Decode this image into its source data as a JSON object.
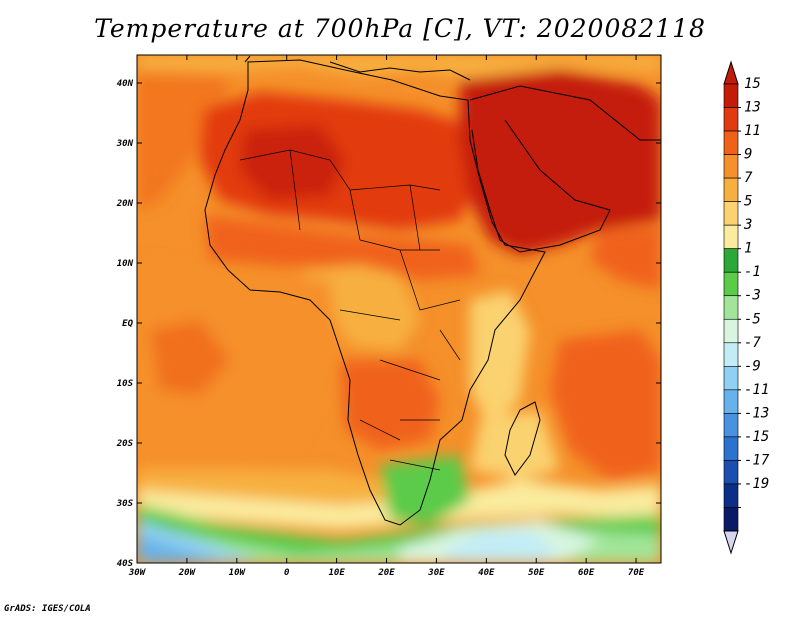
{
  "map": {
    "title": "Temperature at 700hPa [C], VT: 2020082118",
    "credit": "GrADS: IGES/COLA",
    "lon_ticks": [
      "30W",
      "20W",
      "10W",
      "0",
      "10E",
      "20E",
      "30E",
      "40E",
      "50E",
      "60E",
      "70E"
    ],
    "lat_ticks": [
      "40N",
      "30N",
      "20N",
      "10N",
      "EQ",
      "10S",
      "20S",
      "30S",
      "40S"
    ]
  },
  "colorbar": {
    "labels": [
      "15",
      "13",
      "11",
      "9",
      "7",
      "5",
      "3",
      "1",
      "-1",
      "-3",
      "-5",
      "-7",
      "-9",
      "-11",
      "-13",
      "-15",
      "-17",
      "-19"
    ],
    "colors": [
      "#c41a08",
      "#e23a10",
      "#f0621a",
      "#f5902a",
      "#f7b040",
      "#fad270",
      "#faeb9e",
      "#2ca838",
      "#5ccb48",
      "#a2e59a",
      "#d8f5e0",
      "#c2ecf6",
      "#90d0f2",
      "#66b2ea",
      "#4a92e0",
      "#2e72d0",
      "#1a4fb0",
      "#0c2e88",
      "#0a1a66"
    ],
    "top_triangle_color": "#c41a08",
    "bottom_triangle_color": "#d7d5f0"
  }
}
